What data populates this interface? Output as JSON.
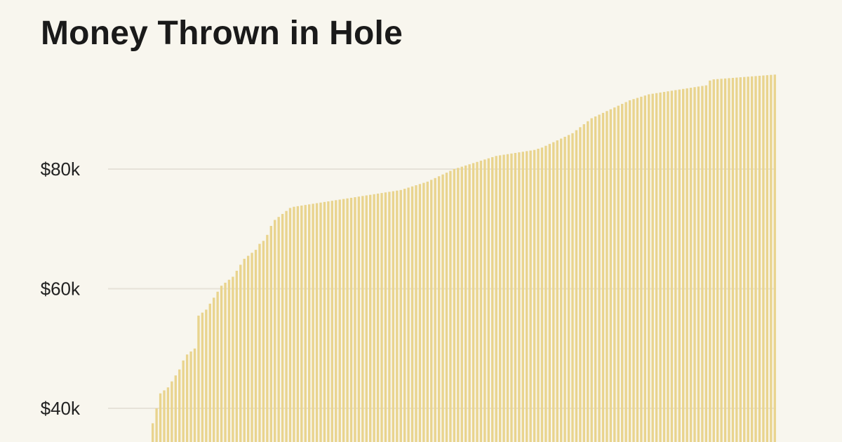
{
  "chart_data": {
    "type": "bar",
    "title": "Money Thrown in Hole",
    "xlabel": "",
    "ylabel": "",
    "ylim": [
      27000,
      97500
    ],
    "yticks": [
      {
        "value": 40000,
        "label": "$40k"
      },
      {
        "value": 60000,
        "label": "$60k"
      },
      {
        "value": 80000,
        "label": "$80k"
      }
    ],
    "grid": true,
    "bar_color": "#e9d48e",
    "grid_color": "#e6e2d8",
    "series": [
      {
        "values": [
          37500,
          40000,
          42500,
          43000,
          43500,
          44500,
          45500,
          46500,
          48000,
          49000,
          49500,
          50000,
          55500,
          56000,
          56500,
          57500,
          58500,
          59500,
          60500,
          61000,
          61500,
          62000,
          63000,
          64000,
          65000,
          65500,
          66000,
          66500,
          67500,
          68000,
          69000,
          70500,
          71500,
          72000,
          72500,
          73000,
          73500,
          73700,
          73800,
          73900,
          74000,
          74100,
          74200,
          74300,
          74400,
          74500,
          74600,
          74700,
          74800,
          74900,
          75000,
          75100,
          75200,
          75300,
          75400,
          75500,
          75600,
          75700,
          75800,
          75900,
          76000,
          76100,
          76200,
          76300,
          76400,
          76500,
          76700,
          76900,
          77100,
          77300,
          77500,
          77700,
          77900,
          78200,
          78500,
          78800,
          79100,
          79400,
          79700,
          80000,
          80200,
          80400,
          80600,
          80800,
          81000,
          81200,
          81400,
          81600,
          81800,
          82000,
          82200,
          82300,
          82400,
          82500,
          82600,
          82700,
          82800,
          82900,
          83000,
          83100,
          83200,
          83400,
          83600,
          83900,
          84200,
          84500,
          84800,
          85100,
          85400,
          85700,
          86000,
          86500,
          87000,
          87500,
          88000,
          88500,
          88800,
          89100,
          89400,
          89700,
          90000,
          90300,
          90600,
          90900,
          91200,
          91500,
          91700,
          91900,
          92100,
          92300,
          92500,
          92600,
          92700,
          92800,
          92900,
          93000,
          93100,
          93200,
          93300,
          93400,
          93500,
          93600,
          93700,
          93800,
          93900,
          94000,
          94800,
          95000,
          95050,
          95100,
          95150,
          95200,
          95250,
          95300,
          95350,
          95400,
          95450,
          95500,
          95550,
          95600,
          95650,
          95700,
          95750,
          95800
        ]
      }
    ]
  }
}
